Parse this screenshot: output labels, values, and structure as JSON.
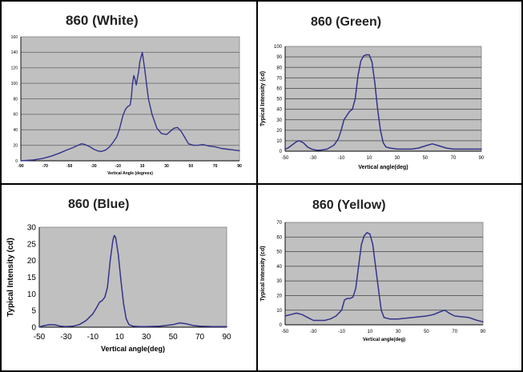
{
  "chart_data": [
    {
      "type": "line",
      "title": "860 (White)",
      "xlabel": "Vertical Angle (degrees)",
      "ylabel": "",
      "xlim": [
        -90,
        90
      ],
      "ylim": [
        0,
        160
      ],
      "xticks": [
        "-90",
        "-70",
        "-50",
        "-30",
        "-10",
        "10",
        "30",
        "50",
        "70",
        "90"
      ],
      "yticks": [
        "0",
        "20",
        "40",
        "60",
        "80",
        "100",
        "120",
        "140",
        "160"
      ],
      "grid": true,
      "series": [
        {
          "color": "#33338a",
          "x": [
            -90,
            -80,
            -72,
            -65,
            -58,
            -52,
            -47,
            -43,
            -40,
            -37,
            -33,
            -30,
            -27,
            -24,
            -20,
            -17,
            -14,
            -11,
            -9,
            -7,
            -6,
            -5,
            -4,
            -3,
            -2,
            0,
            1,
            2,
            3,
            4,
            5,
            7,
            8,
            10,
            12,
            15,
            18,
            22,
            26,
            30,
            33,
            36,
            39,
            42,
            45,
            48,
            52,
            56,
            60,
            65,
            70,
            75,
            80,
            85,
            90
          ],
          "y": [
            0,
            1,
            3,
            6,
            10,
            14,
            17,
            20,
            22,
            21,
            18,
            15,
            13,
            12,
            14,
            18,
            24,
            31,
            40,
            52,
            58,
            62,
            66,
            68,
            70,
            72,
            82,
            100,
            110,
            105,
            98,
            115,
            128,
            140,
            118,
            80,
            60,
            42,
            35,
            34,
            38,
            42,
            43,
            38,
            30,
            22,
            20,
            20,
            21,
            19,
            18,
            16,
            15,
            14,
            13
          ]
        }
      ]
    },
    {
      "type": "line",
      "title": "860 (Green)",
      "xlabel": "Vertical angle(deg)",
      "ylabel": "Typical Intensity (cd)",
      "xlim": [
        -50,
        90
      ],
      "ylim": [
        0,
        100
      ],
      "xticks": [
        "-50",
        "-30",
        "-10",
        "10",
        "30",
        "50",
        "70",
        "90"
      ],
      "yticks": [
        "0",
        "10",
        "20",
        "30",
        "40",
        "50",
        "60",
        "70",
        "80",
        "90",
        "100"
      ],
      "grid": true,
      "series": [
        {
          "color": "#33338a",
          "x": [
            -50,
            -48,
            -45,
            -42,
            -40,
            -37,
            -34,
            -31,
            -28,
            -25,
            -20,
            -15,
            -12,
            -10,
            -8,
            -6,
            -4,
            -2,
            0,
            2,
            4,
            6,
            8,
            10,
            12,
            14,
            16,
            18,
            20,
            22,
            25,
            30,
            40,
            45,
            50,
            55,
            60,
            65,
            70,
            80,
            90
          ],
          "y": [
            2,
            3,
            6,
            9,
            10,
            8,
            4,
            2,
            1,
            1,
            2,
            6,
            12,
            20,
            30,
            34,
            38,
            40,
            50,
            72,
            86,
            91,
            92,
            92,
            85,
            65,
            40,
            20,
            8,
            4,
            3,
            2,
            2,
            3,
            5,
            7,
            5,
            3,
            2,
            2,
            2
          ]
        }
      ]
    },
    {
      "type": "line",
      "title": "860 (Blue)",
      "xlabel": "Vertical angle(deg)",
      "ylabel": "Typical Intensity (cd)",
      "xlim": [
        -50,
        90
      ],
      "ylim": [
        0,
        30
      ],
      "xticks": [
        "-50",
        "-30",
        "-10",
        "10",
        "30",
        "50",
        "70",
        "90"
      ],
      "yticks": [
        "0",
        "5",
        "10",
        "15",
        "20",
        "25",
        "30"
      ],
      "grid": false,
      "series": [
        {
          "color": "#33338a",
          "x": [
            -50,
            -46,
            -42,
            -38,
            -34,
            -30,
            -25,
            -20,
            -15,
            -10,
            -7,
            -5,
            -3,
            -1,
            1,
            3,
            5,
            6,
            7,
            9,
            11,
            13,
            15,
            17,
            20,
            25,
            30,
            40,
            50,
            55,
            60,
            65,
            70,
            80,
            90
          ],
          "y": [
            0.1,
            0.5,
            0.8,
            0.7,
            0.3,
            0.2,
            0.3,
            0.8,
            2,
            4,
            6,
            7.5,
            8,
            9,
            12,
            20,
            26,
            27.5,
            27,
            22,
            14,
            7,
            2.5,
            0.8,
            0.3,
            0.2,
            0.2,
            0.3,
            0.8,
            1.3,
            1,
            0.5,
            0.3,
            0.2,
            0.2
          ]
        }
      ]
    },
    {
      "type": "line",
      "title": "860 (Yellow)",
      "xlabel": "Vertical angle(deg)",
      "ylabel": "Typical Intensity (cd)",
      "xlim": [
        -50,
        90
      ],
      "ylim": [
        0,
        70
      ],
      "xticks": [
        "-50",
        "-30",
        "-10",
        "10",
        "30",
        "50",
        "70",
        "90"
      ],
      "yticks": [
        "0",
        "10",
        "20",
        "30",
        "40",
        "50",
        "60",
        "70"
      ],
      "grid": true,
      "series": [
        {
          "color": "#33338a",
          "x": [
            -50,
            -46,
            -42,
            -38,
            -34,
            -30,
            -26,
            -22,
            -18,
            -14,
            -10,
            -8,
            -6,
            -4,
            -2,
            0,
            2,
            4,
            6,
            8,
            10,
            12,
            14,
            16,
            18,
            20,
            24,
            30,
            40,
            50,
            55,
            60,
            63,
            66,
            70,
            80,
            86,
            90
          ],
          "y": [
            6,
            7,
            8,
            7,
            5,
            3,
            3,
            3,
            4,
            6,
            10,
            17,
            18,
            18,
            19,
            25,
            40,
            55,
            61,
            63,
            62,
            55,
            40,
            25,
            10,
            5,
            4,
            4,
            5,
            6,
            7,
            9,
            10,
            8,
            6,
            5,
            3,
            2
          ]
        }
      ]
    }
  ]
}
